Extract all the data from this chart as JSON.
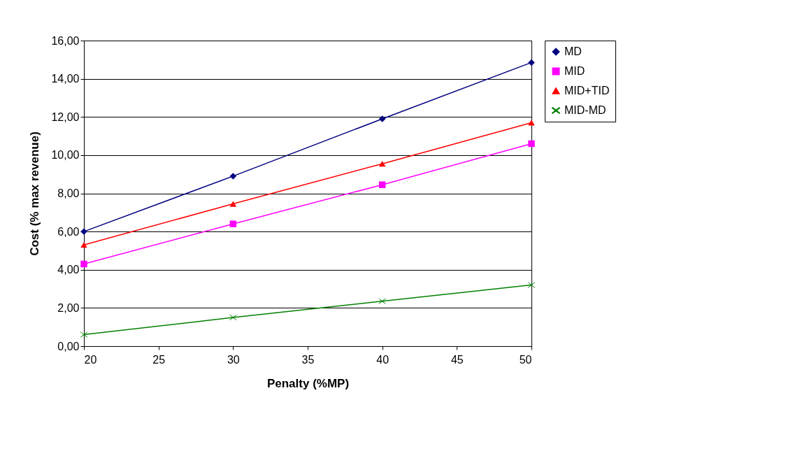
{
  "chart_data": {
    "type": "line",
    "xlabel": "Penalty (%MP)",
    "ylabel": "Cost (% max revenue)",
    "x": [
      20,
      30,
      40,
      50
    ],
    "series": [
      {
        "name": "MD",
        "color": "#000080",
        "marker": "diamond",
        "values": [
          6.0,
          8.9,
          11.9,
          14.85
        ]
      },
      {
        "name": "MID",
        "color": "#ff00ff",
        "marker": "square",
        "values": [
          4.3,
          6.4,
          8.45,
          10.6
        ]
      },
      {
        "name": "MID+TID",
        "color": "#ff0000",
        "marker": "triangle",
        "values": [
          5.3,
          7.45,
          9.55,
          11.7
        ]
      },
      {
        "name": "MID-MD",
        "color": "#008000",
        "marker": "cross",
        "values": [
          0.6,
          1.5,
          2.35,
          3.2
        ]
      }
    ],
    "xlim": [
      20,
      50
    ],
    "xticks": [
      20,
      25,
      30,
      35,
      40,
      45,
      50
    ],
    "ylim": [
      0,
      16
    ],
    "yticks": [
      {
        "value": 0,
        "label": "0,00"
      },
      {
        "value": 2,
        "label": "2,00"
      },
      {
        "value": 4,
        "label": "4,00"
      },
      {
        "value": 6,
        "label": "6,00"
      },
      {
        "value": 8,
        "label": "8,00"
      },
      {
        "value": 10,
        "label": "10,00"
      },
      {
        "value": 12,
        "label": "12,00"
      },
      {
        "value": 14,
        "label": "14,00"
      },
      {
        "value": 16,
        "label": "16,00"
      }
    ],
    "grid": "y",
    "legend": "right",
    "line_style": "solid"
  }
}
